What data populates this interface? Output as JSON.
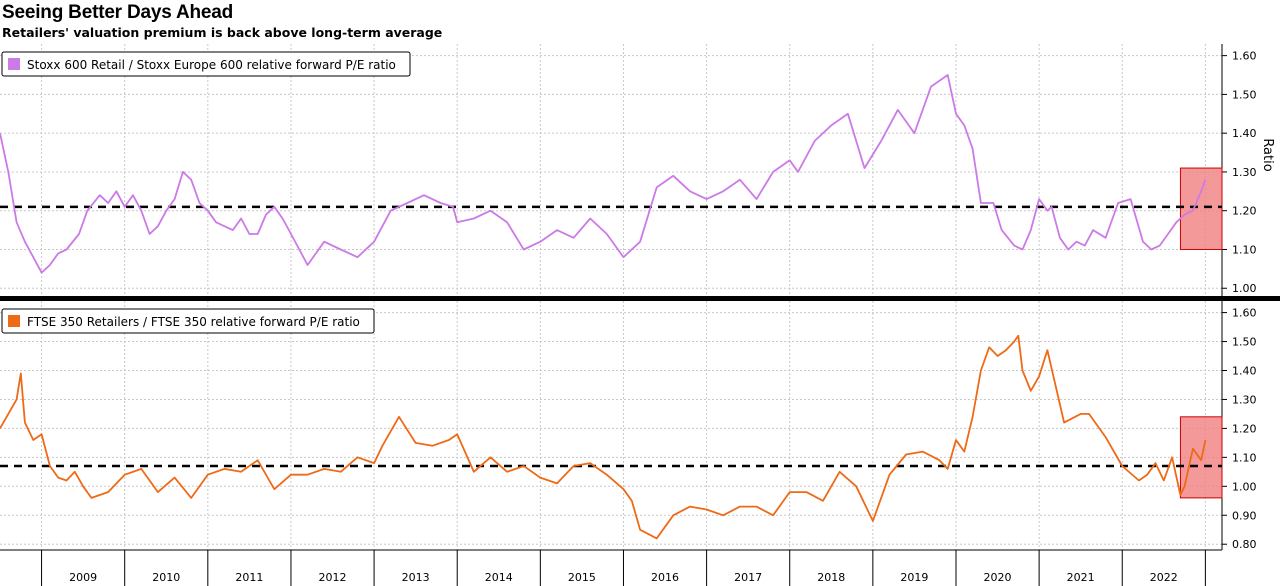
{
  "header": {
    "title": "Seeing Better Days Ahead",
    "subtitle": "Retailers' valuation premium is back above long-term average"
  },
  "colors": {
    "stoxx_line": "#cc7ae6",
    "ftse_line": "#ee6a17",
    "highlight_fill": "#f08080",
    "highlight_stroke": "#cc0000",
    "avg_line": "#000000"
  },
  "chart_data": [
    {
      "type": "line",
      "ylabel": "Ratio",
      "ylim": [
        0.98,
        1.63
      ],
      "yticks": [
        1.0,
        1.1,
        1.2,
        1.3,
        1.4,
        1.5,
        1.6
      ],
      "ytick_labels": [
        "1.00",
        "1.10",
        "1.20",
        "1.30",
        "1.40",
        "1.50",
        "1.60"
      ],
      "xlim": [
        2008.5,
        2023.2
      ],
      "grid": true,
      "legend": "top-left",
      "long_term_average": 1.21,
      "highlight": {
        "x": [
          2022.7,
          2023.2
        ],
        "y": [
          1.1,
          1.31
        ]
      },
      "series": [
        {
          "name": "Stoxx 600 Retail / Stoxx Europe 600 relative forward P/E ratio",
          "x": [
            2008.5,
            2008.6,
            2008.7,
            2008.8,
            2008.9,
            2009.0,
            2009.1,
            2009.2,
            2009.3,
            2009.45,
            2009.55,
            2009.7,
            2009.8,
            2009.9,
            2010.0,
            2010.1,
            2010.2,
            2010.3,
            2010.4,
            2010.5,
            2010.6,
            2010.7,
            2010.8,
            2010.9,
            2011.0,
            2011.1,
            2011.2,
            2011.3,
            2011.4,
            2011.5,
            2011.6,
            2011.7,
            2011.8,
            2011.9,
            2012.0,
            2012.2,
            2012.4,
            2012.6,
            2012.8,
            2013.0,
            2013.2,
            2013.4,
            2013.6,
            2013.8,
            2013.95,
            2014.0,
            2014.2,
            2014.4,
            2014.6,
            2014.8,
            2015.0,
            2015.2,
            2015.4,
            2015.6,
            2015.8,
            2016.0,
            2016.2,
            2016.4,
            2016.6,
            2016.8,
            2017.0,
            2017.2,
            2017.4,
            2017.6,
            2017.8,
            2018.0,
            2018.1,
            2018.3,
            2018.5,
            2018.7,
            2018.9,
            2019.1,
            2019.3,
            2019.5,
            2019.7,
            2019.9,
            2020.0,
            2020.1,
            2020.2,
            2020.3,
            2020.45,
            2020.55,
            2020.7,
            2020.8,
            2020.9,
            2021.0,
            2021.1,
            2021.15,
            2021.25,
            2021.35,
            2021.45,
            2021.55,
            2021.65,
            2021.8,
            2021.95,
            2022.1,
            2022.25,
            2022.35,
            2022.45,
            2022.55,
            2022.65,
            2022.75,
            2022.85,
            2022.95,
            2023.0
          ],
          "values": [
            1.4,
            1.3,
            1.17,
            1.12,
            1.08,
            1.04,
            1.06,
            1.09,
            1.1,
            1.14,
            1.2,
            1.24,
            1.22,
            1.25,
            1.21,
            1.24,
            1.2,
            1.14,
            1.16,
            1.2,
            1.23,
            1.3,
            1.28,
            1.22,
            1.2,
            1.17,
            1.16,
            1.15,
            1.18,
            1.14,
            1.14,
            1.19,
            1.21,
            1.18,
            1.14,
            1.06,
            1.12,
            1.1,
            1.08,
            1.12,
            1.2,
            1.22,
            1.24,
            1.22,
            1.21,
            1.17,
            1.18,
            1.2,
            1.17,
            1.1,
            1.12,
            1.15,
            1.13,
            1.18,
            1.14,
            1.08,
            1.12,
            1.26,
            1.29,
            1.25,
            1.23,
            1.25,
            1.28,
            1.23,
            1.3,
            1.33,
            1.3,
            1.38,
            1.42,
            1.45,
            1.31,
            1.38,
            1.46,
            1.4,
            1.52,
            1.55,
            1.45,
            1.42,
            1.36,
            1.22,
            1.22,
            1.15,
            1.11,
            1.1,
            1.15,
            1.23,
            1.2,
            1.21,
            1.13,
            1.1,
            1.12,
            1.11,
            1.15,
            1.13,
            1.22,
            1.23,
            1.12,
            1.1,
            1.11,
            1.14,
            1.17,
            1.19,
            1.2,
            1.25,
            1.28
          ]
        }
      ]
    },
    {
      "type": "line",
      "ylim": [
        0.78,
        1.64
      ],
      "yticks": [
        0.8,
        0.9,
        1.0,
        1.1,
        1.2,
        1.3,
        1.4,
        1.5,
        1.6
      ],
      "ytick_labels": [
        "0.80",
        "0.90",
        "1.00",
        "1.10",
        "1.20",
        "1.30",
        "1.40",
        "1.50",
        "1.60"
      ],
      "xlim": [
        2008.5,
        2023.2
      ],
      "xticks": [
        2009,
        2010,
        2011,
        2012,
        2013,
        2014,
        2015,
        2016,
        2017,
        2018,
        2019,
        2020,
        2021,
        2022
      ],
      "xtick_labels": [
        "2009",
        "2010",
        "2011",
        "2012",
        "2013",
        "2014",
        "2015",
        "2016",
        "2017",
        "2018",
        "2019",
        "2020",
        "2021",
        "2022"
      ],
      "grid": true,
      "legend": "top-left",
      "long_term_average": 1.07,
      "highlight": {
        "x": [
          2022.7,
          2023.2
        ],
        "y": [
          0.96,
          1.24
        ]
      },
      "series": [
        {
          "name": "FTSE 350 Retailers / FTSE 350 relative forward P/E ratio",
          "x": [
            2008.5,
            2008.6,
            2008.7,
            2008.75,
            2008.8,
            2008.9,
            2009.0,
            2009.1,
            2009.2,
            2009.3,
            2009.4,
            2009.5,
            2009.6,
            2009.8,
            2010.0,
            2010.2,
            2010.4,
            2010.6,
            2010.8,
            2011.0,
            2011.2,
            2011.4,
            2011.6,
            2011.8,
            2012.0,
            2012.2,
            2012.4,
            2012.6,
            2012.8,
            2013.0,
            2013.1,
            2013.3,
            2013.5,
            2013.7,
            2013.9,
            2014.0,
            2014.2,
            2014.4,
            2014.6,
            2014.8,
            2015.0,
            2015.2,
            2015.4,
            2015.6,
            2015.8,
            2016.0,
            2016.1,
            2016.2,
            2016.4,
            2016.6,
            2016.8,
            2017.0,
            2017.2,
            2017.4,
            2017.6,
            2017.8,
            2018.0,
            2018.2,
            2018.4,
            2018.6,
            2018.8,
            2019.0,
            2019.2,
            2019.4,
            2019.6,
            2019.8,
            2019.9,
            2020.0,
            2020.1,
            2020.2,
            2020.3,
            2020.4,
            2020.5,
            2020.6,
            2020.7,
            2020.75,
            2020.8,
            2020.9,
            2021.0,
            2021.1,
            2021.3,
            2021.5,
            2021.6,
            2021.8,
            2022.0,
            2022.2,
            2022.3,
            2022.4,
            2022.5,
            2022.6,
            2022.7,
            2022.75,
            2022.85,
            2022.95,
            2023.0
          ],
          "values": [
            1.2,
            1.25,
            1.3,
            1.39,
            1.22,
            1.16,
            1.18,
            1.07,
            1.03,
            1.02,
            1.05,
            1.0,
            0.96,
            0.98,
            1.04,
            1.06,
            0.98,
            1.03,
            0.96,
            1.04,
            1.06,
            1.05,
            1.09,
            0.99,
            1.04,
            1.04,
            1.06,
            1.05,
            1.1,
            1.08,
            1.14,
            1.24,
            1.15,
            1.14,
            1.16,
            1.18,
            1.05,
            1.1,
            1.05,
            1.07,
            1.03,
            1.01,
            1.07,
            1.08,
            1.04,
            0.99,
            0.95,
            0.85,
            0.82,
            0.9,
            0.93,
            0.92,
            0.9,
            0.93,
            0.93,
            0.9,
            0.98,
            0.98,
            0.95,
            1.05,
            1.0,
            0.88,
            1.04,
            1.11,
            1.12,
            1.09,
            1.06,
            1.16,
            1.12,
            1.24,
            1.4,
            1.48,
            1.45,
            1.47,
            1.5,
            1.52,
            1.4,
            1.33,
            1.38,
            1.47,
            1.22,
            1.25,
            1.25,
            1.17,
            1.07,
            1.02,
            1.04,
            1.08,
            1.02,
            1.1,
            0.97,
            1.0,
            1.13,
            1.09,
            1.16
          ]
        }
      ]
    }
  ]
}
